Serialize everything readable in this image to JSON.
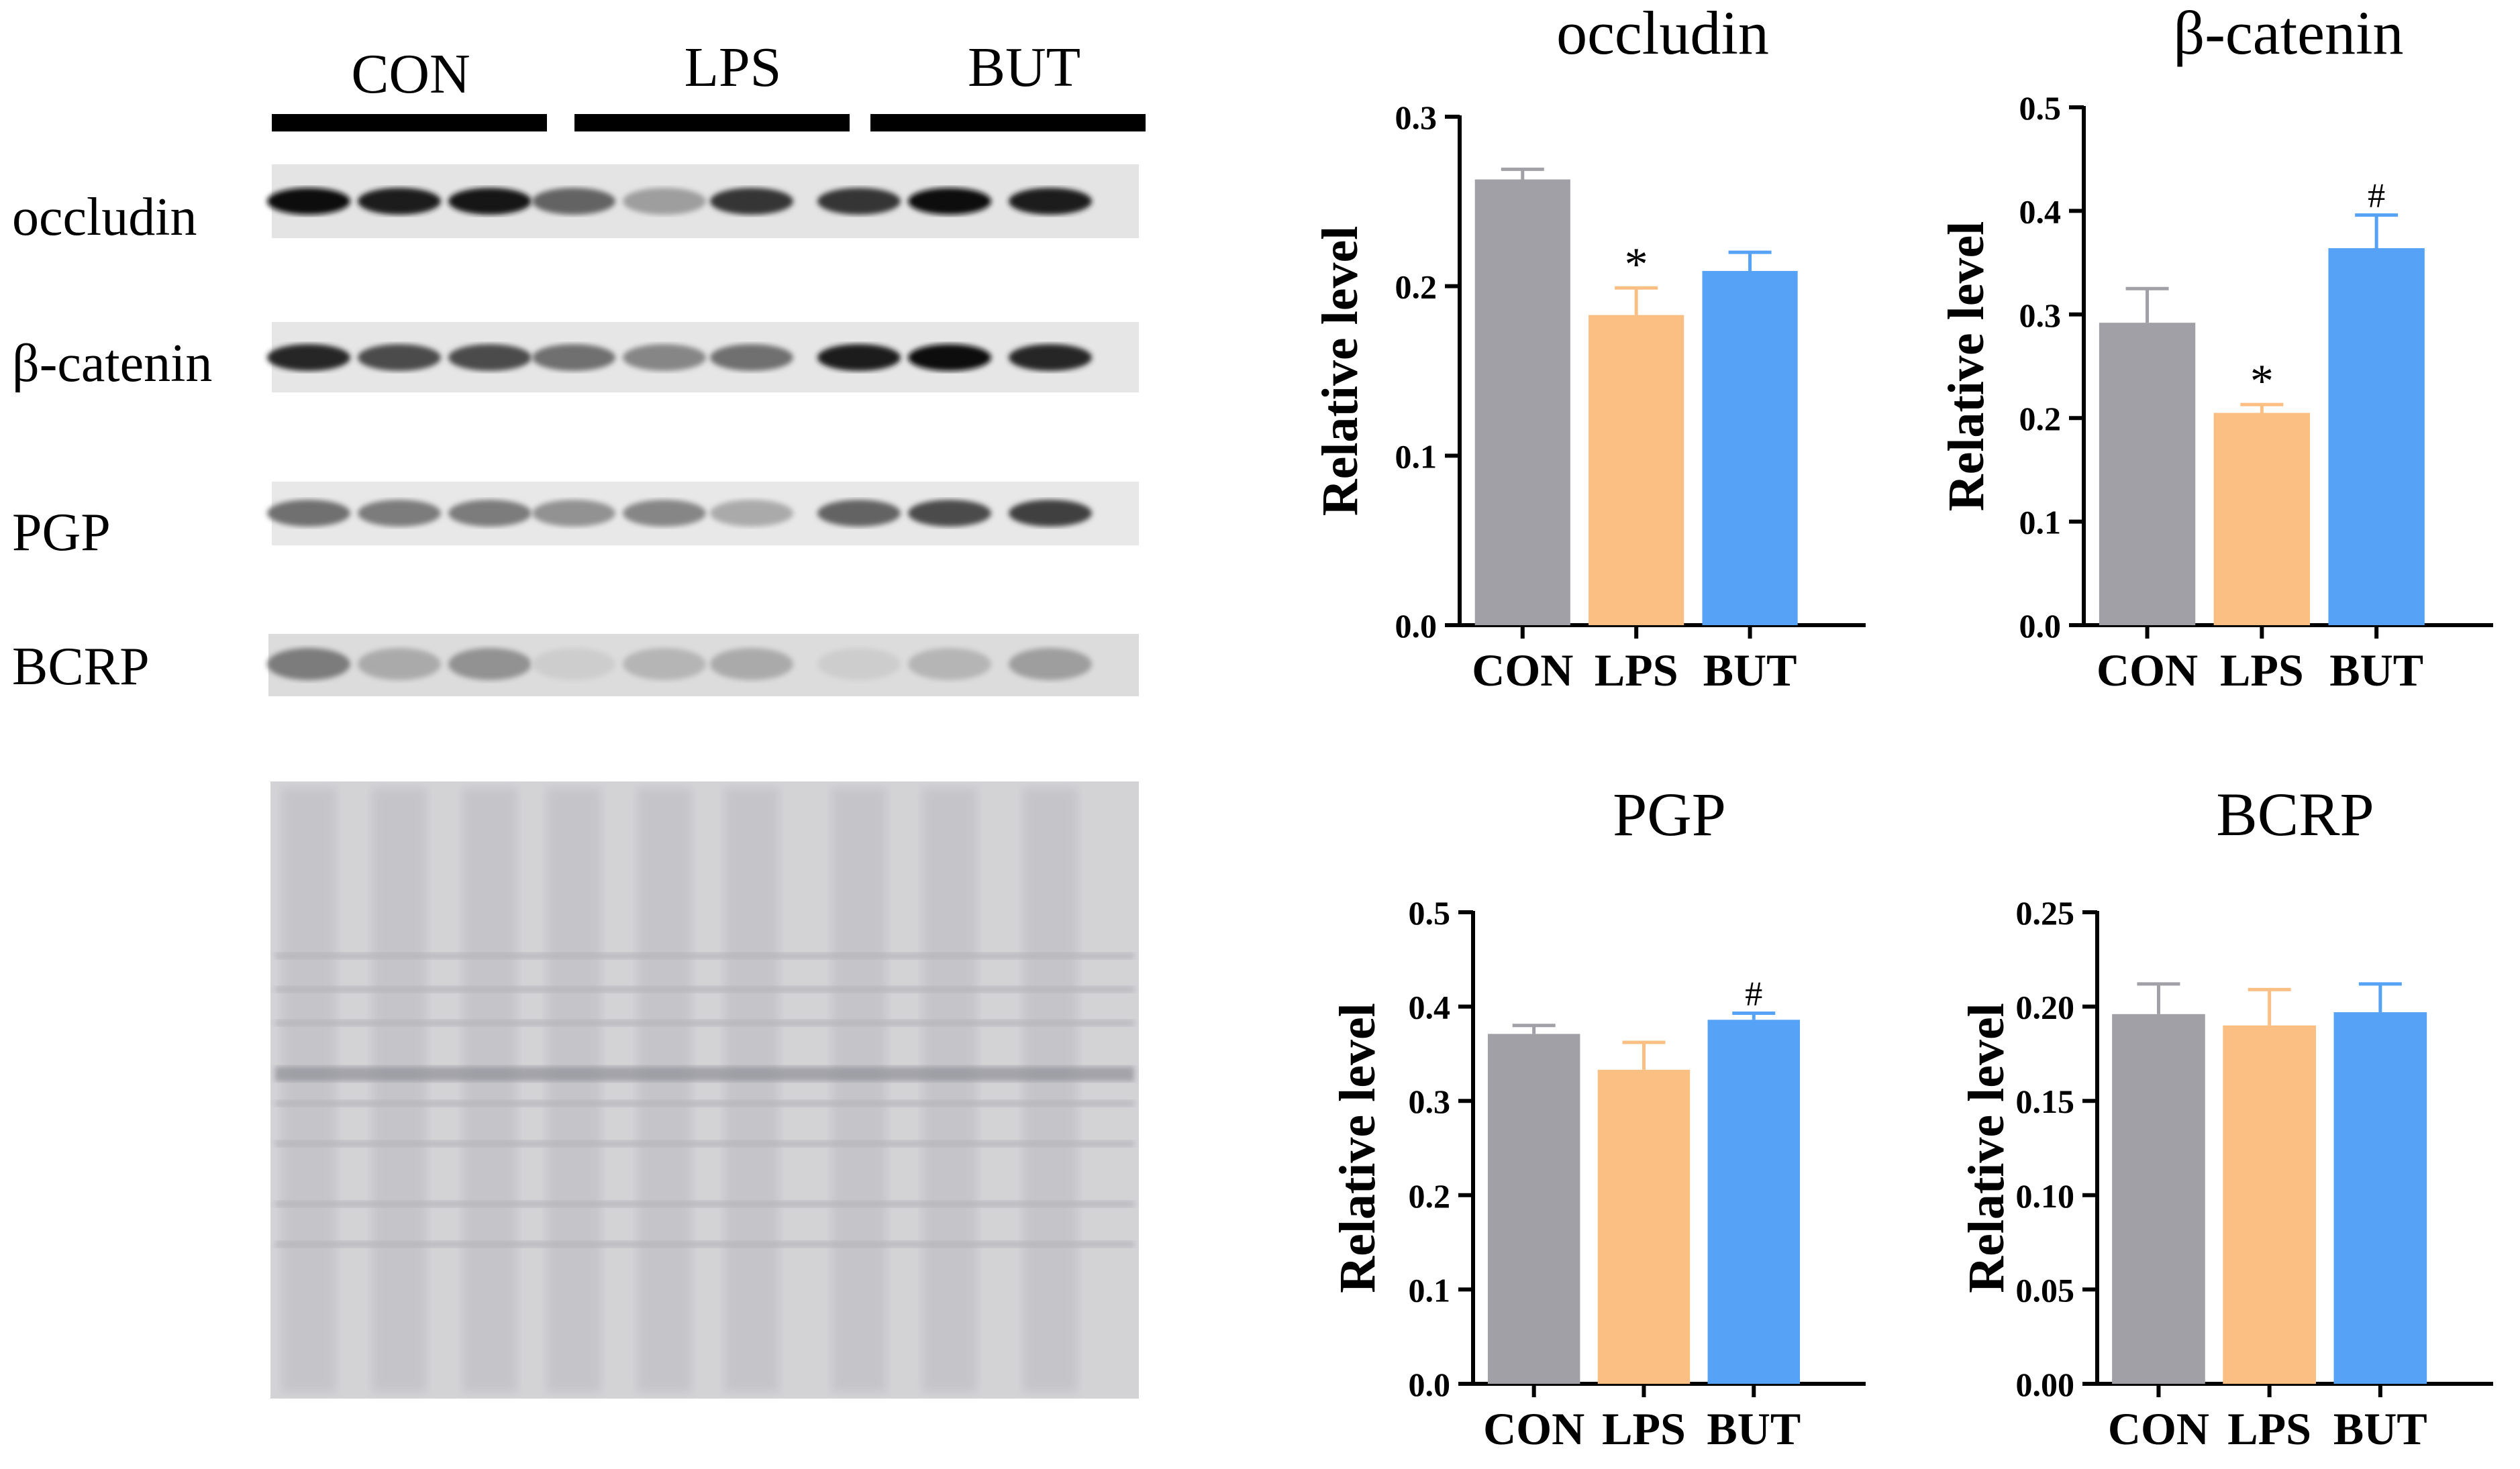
{
  "blot": {
    "groups": [
      "CON",
      "LPS",
      "BUT"
    ],
    "rows": [
      {
        "label": "occludin",
        "intensities": [
          0.95,
          0.9,
          0.92,
          0.6,
          0.35,
          0.8,
          0.8,
          0.95,
          0.9
        ]
      },
      {
        "label": "β-catenin",
        "intensities": [
          0.85,
          0.7,
          0.7,
          0.55,
          0.45,
          0.55,
          0.9,
          0.95,
          0.85
        ]
      },
      {
        "label": "PGP",
        "intensities": [
          0.55,
          0.5,
          0.5,
          0.4,
          0.45,
          0.3,
          0.6,
          0.7,
          0.75
        ]
      },
      {
        "label": "BCRP",
        "intensities": [
          0.5,
          0.3,
          0.4,
          0.15,
          0.25,
          0.3,
          0.15,
          0.25,
          0.35
        ]
      }
    ]
  },
  "colors": {
    "CON": "#a0a0a6",
    "LPS": "#fbbf84",
    "BUT": "#56a2f6"
  },
  "chart_data": [
    {
      "type": "bar",
      "title": "occludin",
      "ylabel": "Relative  level",
      "categories": [
        "CON",
        "LPS",
        "BUT"
      ],
      "values": [
        0.263,
        0.183,
        0.209
      ],
      "errors": [
        0.006,
        0.016,
        0.011
      ],
      "marks": [
        "",
        "*",
        ""
      ],
      "ylim": [
        0,
        0.3
      ],
      "yticks": [
        "0.0",
        "0.1",
        "0.2",
        "0.3"
      ]
    },
    {
      "type": "bar",
      "title": "β-catenin",
      "ylabel": "Relative  level",
      "categories": [
        "CON",
        "LPS",
        "BUT"
      ],
      "values": [
        0.292,
        0.205,
        0.364
      ],
      "errors": [
        0.033,
        0.008,
        0.032
      ],
      "marks": [
        "",
        "*",
        "#"
      ],
      "ylim": [
        0,
        0.5
      ],
      "yticks": [
        "0.0",
        "0.1",
        "0.2",
        "0.3",
        "0.4",
        "0.5"
      ]
    },
    {
      "type": "bar",
      "title": "PGP",
      "ylabel": "Relative  level",
      "categories": [
        "CON",
        "LPS",
        "BUT"
      ],
      "values": [
        0.371,
        0.333,
        0.386
      ],
      "errors": [
        0.009,
        0.029,
        0.007
      ],
      "marks": [
        "",
        "",
        "#"
      ],
      "ylim": [
        0,
        0.5
      ],
      "yticks": [
        "0.0",
        "0.1",
        "0.2",
        "0.3",
        "0.4",
        "0.5"
      ]
    },
    {
      "type": "bar",
      "title": "BCRP",
      "ylabel": "Relative  level",
      "categories": [
        "CON",
        "LPS",
        "BUT"
      ],
      "values": [
        0.196,
        0.19,
        0.197
      ],
      "errors": [
        0.016,
        0.019,
        0.015
      ],
      "marks": [
        "",
        "",
        ""
      ],
      "ylim": [
        0,
        0.25
      ],
      "yticks": [
        "0.00",
        "0.05",
        "0.10",
        "0.15",
        "0.20",
        "0.25"
      ]
    }
  ]
}
